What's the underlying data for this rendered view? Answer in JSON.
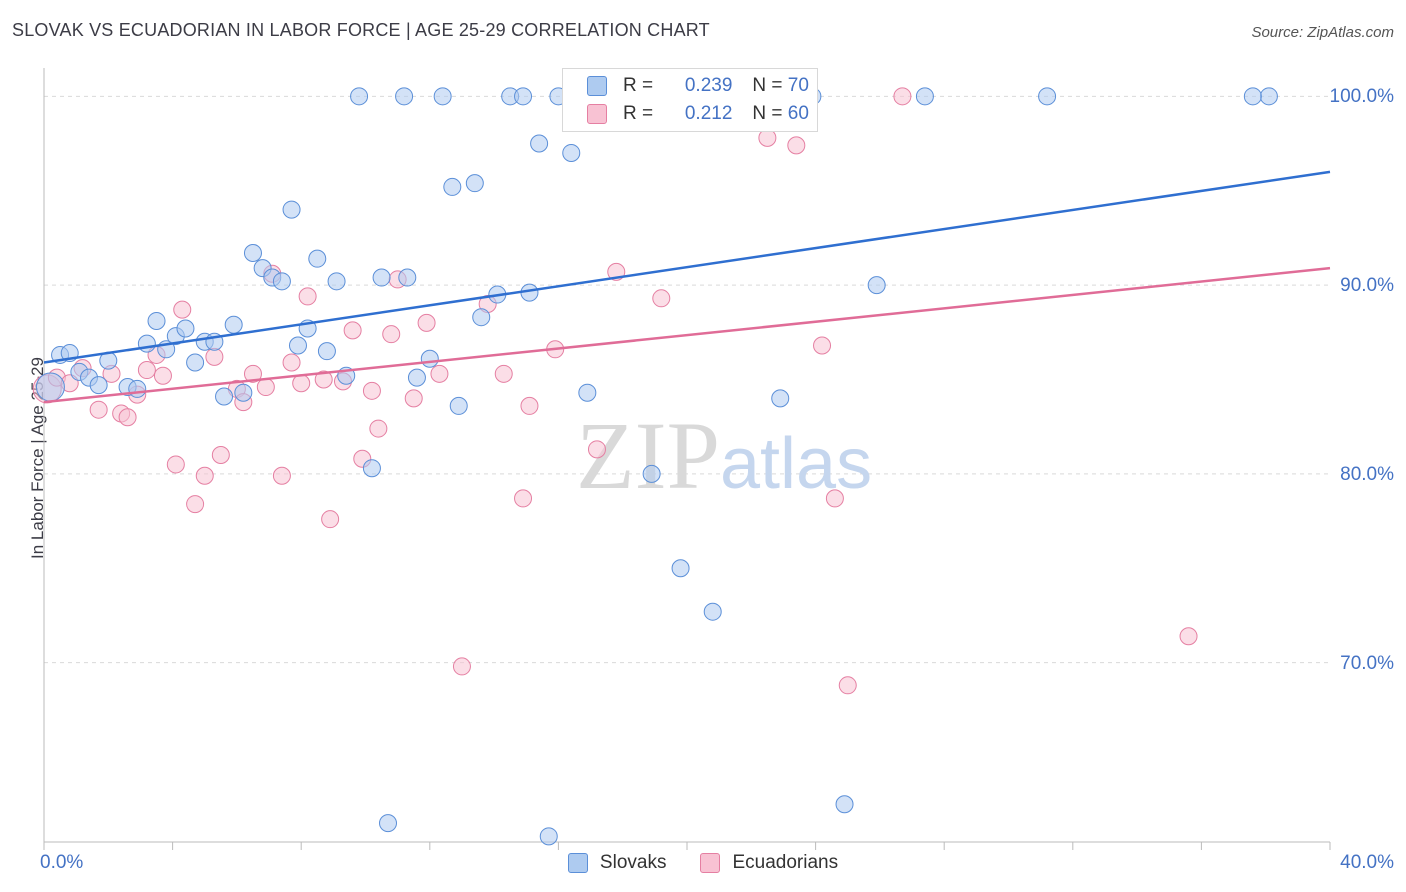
{
  "header": {
    "title": "SLOVAK VS ECUADORIAN IN LABOR FORCE | AGE 25-29 CORRELATION CHART",
    "source": "Source: ZipAtlas.com"
  },
  "watermark": {
    "zip": "ZIP",
    "atlas": "atlas"
  },
  "legend": {
    "r_label": "R =",
    "n_label": "N =",
    "rows": [
      {
        "series": "Slovaks",
        "r": "0.239",
        "n": "70",
        "fill": "#aecbf0",
        "stroke": "#5b8fd8"
      },
      {
        "series": "Ecuadorians",
        "r": "0.212",
        "n": "60",
        "fill": "#f8c2d3",
        "stroke": "#e57fa2"
      }
    ]
  },
  "bottom_legend": [
    "Slovaks",
    "Ecuadorians"
  ],
  "colors": {
    "blue_line": "#2f6fd0",
    "pink_line": "#e06c97",
    "tick_text": "#4472c4",
    "grid": "#d9d9d9"
  },
  "chart_data": {
    "type": "scatter",
    "title": "SLOVAK VS ECUADORIAN IN LABOR FORCE | AGE 25-29 CORRELATION CHART",
    "xlabel": "",
    "ylabel": "In Labor Force | Age 25-29",
    "xlim": [
      0,
      40
    ],
    "ylim": [
      60.5,
      101.5
    ],
    "x_ticks": [
      {
        "v": 0,
        "label": "0.0%"
      },
      {
        "v": 40,
        "label": "40.0%"
      }
    ],
    "y_ticks": [
      {
        "v": 100,
        "label": "100.0%"
      },
      {
        "v": 90,
        "label": "90.0%"
      },
      {
        "v": 80,
        "label": "80.0%"
      },
      {
        "v": 70,
        "label": "70.0%"
      }
    ],
    "grid": true,
    "legend_position": "top-center",
    "series": [
      {
        "name": "Slovaks",
        "trend": [
          [
            0,
            85.9
          ],
          [
            40,
            96.0
          ]
        ],
        "points": [
          [
            0.2,
            84.6
          ],
          [
            0.5,
            86.3
          ],
          [
            0.8,
            86.4
          ],
          [
            1.1,
            85.4
          ],
          [
            1.4,
            85.1
          ],
          [
            1.7,
            84.7
          ],
          [
            2.0,
            86.0
          ],
          [
            2.6,
            84.6
          ],
          [
            2.9,
            84.5
          ],
          [
            3.2,
            86.9
          ],
          [
            3.5,
            88.1
          ],
          [
            3.8,
            86.6
          ],
          [
            4.1,
            87.3
          ],
          [
            4.4,
            87.7
          ],
          [
            4.7,
            85.9
          ],
          [
            5.0,
            87.0
          ],
          [
            5.3,
            87.0
          ],
          [
            5.6,
            84.1
          ],
          [
            5.9,
            87.9
          ],
          [
            6.2,
            84.3
          ],
          [
            6.5,
            91.7
          ],
          [
            6.8,
            90.9
          ],
          [
            7.1,
            90.4
          ],
          [
            7.4,
            90.2
          ],
          [
            7.7,
            94.0
          ],
          [
            7.9,
            86.8
          ],
          [
            8.2,
            87.7
          ],
          [
            8.5,
            91.4
          ],
          [
            8.8,
            86.5
          ],
          [
            9.1,
            90.2
          ],
          [
            9.4,
            85.2
          ],
          [
            9.8,
            100.0
          ],
          [
            10.2,
            80.3
          ],
          [
            10.5,
            90.4
          ],
          [
            10.7,
            61.5
          ],
          [
            11.2,
            100.0
          ],
          [
            11.3,
            90.4
          ],
          [
            11.6,
            85.1
          ],
          [
            12.0,
            86.1
          ],
          [
            12.4,
            100.0
          ],
          [
            12.7,
            95.2
          ],
          [
            12.9,
            83.6
          ],
          [
            13.4,
            95.4
          ],
          [
            13.6,
            88.3
          ],
          [
            14.1,
            89.5
          ],
          [
            14.5,
            100.0
          ],
          [
            14.9,
            100.0
          ],
          [
            15.1,
            89.6
          ],
          [
            15.4,
            97.5
          ],
          [
            15.7,
            60.8
          ],
          [
            16.0,
            100.0
          ],
          [
            16.4,
            97.0
          ],
          [
            16.9,
            84.3
          ],
          [
            17.9,
            100.0
          ],
          [
            18.9,
            80.0
          ],
          [
            19.8,
            75.0
          ],
          [
            20.8,
            72.7
          ],
          [
            21.2,
            100.0
          ],
          [
            22.0,
            100.0
          ],
          [
            22.9,
            84.0
          ],
          [
            23.9,
            100.0
          ],
          [
            24.9,
            62.5
          ],
          [
            25.9,
            90.0
          ],
          [
            27.4,
            100.0
          ],
          [
            31.2,
            100.0
          ],
          [
            38.1,
            100.0
          ],
          [
            37.6,
            100.0
          ]
        ]
      },
      {
        "name": "Ecuadorians",
        "trend": [
          [
            0,
            83.8
          ],
          [
            40,
            90.9
          ]
        ],
        "points": [
          [
            0.1,
            84.5
          ],
          [
            0.4,
            85.1
          ],
          [
            0.8,
            84.8
          ],
          [
            1.2,
            85.6
          ],
          [
            1.7,
            83.4
          ],
          [
            2.1,
            85.3
          ],
          [
            2.4,
            83.2
          ],
          [
            2.6,
            83.0
          ],
          [
            2.9,
            84.2
          ],
          [
            3.2,
            85.5
          ],
          [
            3.5,
            86.3
          ],
          [
            3.7,
            85.2
          ],
          [
            4.1,
            80.5
          ],
          [
            4.3,
            88.7
          ],
          [
            4.7,
            78.4
          ],
          [
            5.0,
            79.9
          ],
          [
            5.3,
            86.2
          ],
          [
            5.5,
            81.0
          ],
          [
            6.0,
            84.5
          ],
          [
            6.2,
            83.8
          ],
          [
            6.5,
            85.3
          ],
          [
            6.9,
            84.6
          ],
          [
            7.1,
            90.6
          ],
          [
            7.4,
            79.9
          ],
          [
            7.7,
            85.9
          ],
          [
            8.0,
            84.8
          ],
          [
            8.2,
            89.4
          ],
          [
            8.7,
            85.0
          ],
          [
            8.9,
            77.6
          ],
          [
            9.3,
            84.9
          ],
          [
            9.6,
            87.6
          ],
          [
            9.9,
            80.8
          ],
          [
            10.2,
            84.4
          ],
          [
            10.4,
            82.4
          ],
          [
            10.8,
            87.4
          ],
          [
            11.0,
            90.3
          ],
          [
            11.5,
            84.0
          ],
          [
            11.9,
            88.0
          ],
          [
            12.3,
            85.3
          ],
          [
            13.0,
            69.8
          ],
          [
            13.8,
            89.0
          ],
          [
            14.3,
            85.3
          ],
          [
            14.9,
            78.7
          ],
          [
            15.1,
            83.6
          ],
          [
            15.9,
            86.6
          ],
          [
            17.2,
            81.3
          ],
          [
            17.8,
            90.7
          ],
          [
            18.5,
            100.0
          ],
          [
            19.2,
            89.3
          ],
          [
            20.5,
            100.0
          ],
          [
            22.5,
            97.8
          ],
          [
            23.0,
            100.0
          ],
          [
            23.4,
            97.4
          ],
          [
            24.2,
            86.8
          ],
          [
            24.6,
            78.7
          ],
          [
            25.0,
            68.8
          ],
          [
            26.7,
            100.0
          ],
          [
            35.6,
            71.4
          ]
        ]
      }
    ]
  }
}
